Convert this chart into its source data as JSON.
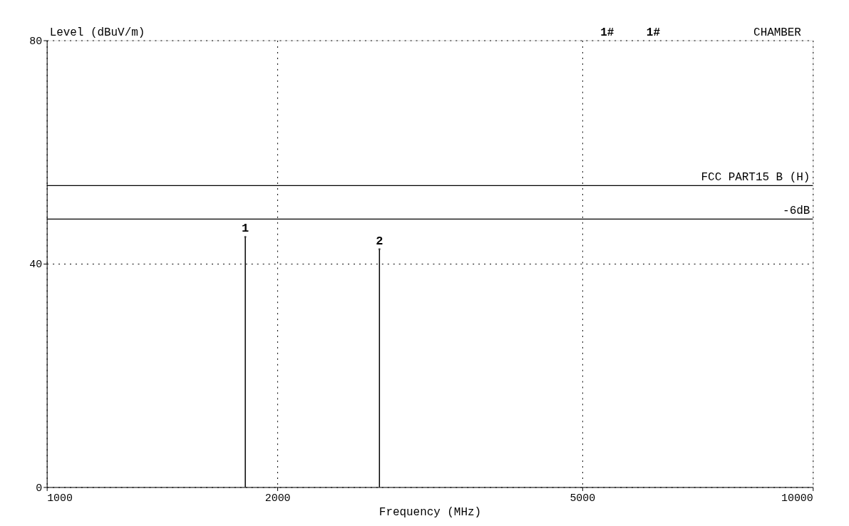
{
  "chart_data": {
    "type": "lollipop",
    "ylabel": "Level (dBuV/m)",
    "xlabel": "Frequency (MHz)",
    "x": [
      1816,
      2718
    ],
    "values": [
      44.8,
      42.6
    ],
    "color": "#000000",
    "xlim": [
      1000,
      10000
    ],
    "xticks": [
      1000,
      2000,
      5000,
      10000
    ],
    "ylim": [
      0,
      80
    ],
    "yticks": [
      0,
      40,
      80
    ],
    "log": "x",
    "grid": true,
    "ref_lines": [
      {
        "axis": "y",
        "value": 54,
        "label": "FCC PART15 B (H)",
        "color": "#000000"
      },
      {
        "axis": "y",
        "value": 48,
        "label": "-6dB",
        "color": "#000000"
      }
    ],
    "annotations": [
      "1#",
      "1#",
      "CHAMBER",
      {
        "text": "1",
        "x": 1816,
        "y": 44.8
      },
      {
        "text": "2",
        "x": 2718,
        "y": 42.6
      }
    ]
  }
}
